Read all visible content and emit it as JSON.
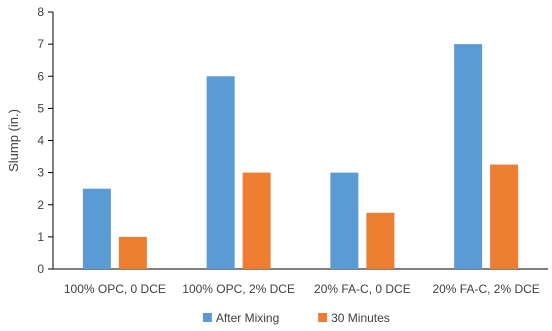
{
  "chart_data": {
    "type": "bar",
    "categories": [
      "100% OPC, 0 DCE",
      "100% OPC, 2% DCE",
      "20% FA-C, 0 DCE",
      "20% FA-C, 2% DCE"
    ],
    "series": [
      {
        "name": "After Mixing",
        "values": [
          2.5,
          6,
          3,
          7
        ],
        "color": "#5B9BD5"
      },
      {
        "name": "30 Minutes",
        "values": [
          1,
          3,
          1.75,
          3.25
        ],
        "color": "#ED7D31"
      }
    ],
    "title": "",
    "xlabel": "",
    "ylabel": "Slump (in.)",
    "ylim": [
      0,
      8
    ],
    "yticks": [
      0,
      1,
      2,
      3,
      4,
      5,
      6,
      7,
      8
    ],
    "grid": false,
    "legend_position": "bottom"
  }
}
